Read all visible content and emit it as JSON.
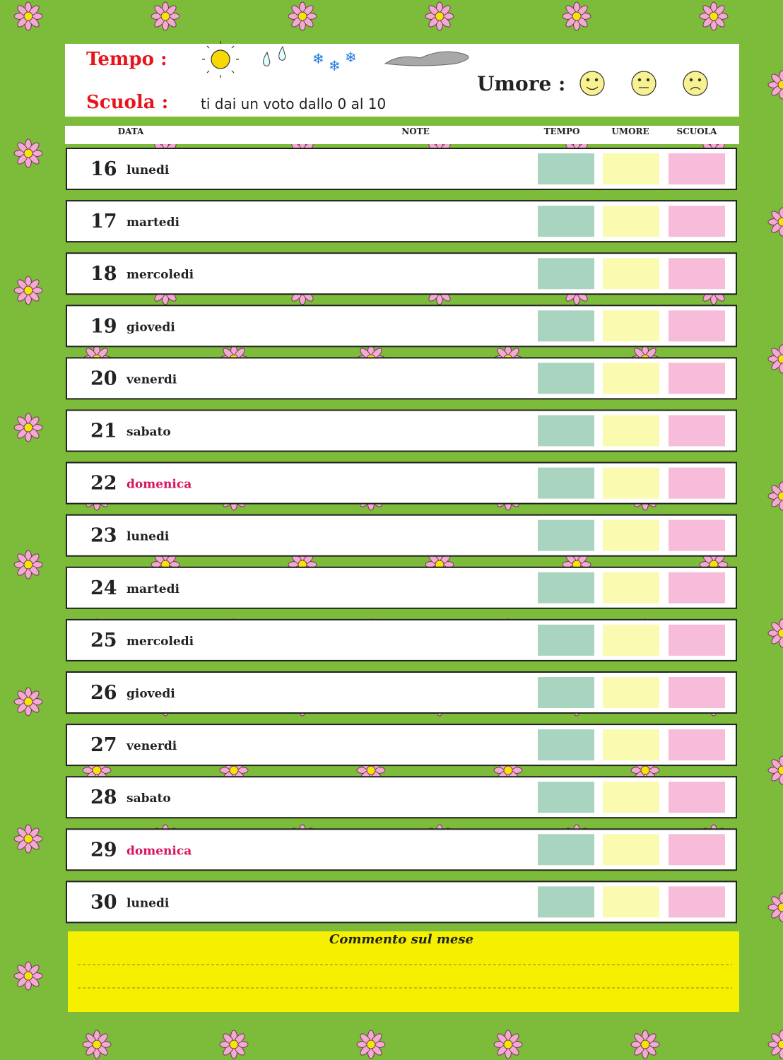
{
  "header": {
    "tempo_label": "Tempo :",
    "scuola_label": "Scuola :",
    "scuola_note": "ti dai un voto dallo 0 al 10",
    "umore_label": "Umore :"
  },
  "columns": [
    "DATA",
    "NOTE",
    "TEMPO",
    "UMORE",
    "SCUOLA"
  ],
  "rows": [
    {
      "day": 16,
      "weekday": "lunedi"
    },
    {
      "day": 17,
      "weekday": "martedi"
    },
    {
      "day": 18,
      "weekday": "mercoledi"
    },
    {
      "day": 19,
      "weekday": "giovedi"
    },
    {
      "day": 20,
      "weekday": "venerdi"
    },
    {
      "day": 21,
      "weekday": "sabato"
    },
    {
      "day": 22,
      "weekday": "domenica"
    },
    {
      "day": 23,
      "weekday": "lunedi"
    },
    {
      "day": 24,
      "weekday": "martedi"
    },
    {
      "day": 25,
      "weekday": "mercoledi"
    },
    {
      "day": 26,
      "weekday": "giovedi"
    },
    {
      "day": 27,
      "weekday": "venerdi"
    },
    {
      "day": 28,
      "weekday": "sabato"
    },
    {
      "day": 29,
      "weekday": "domenica"
    },
    {
      "day": 30,
      "weekday": "lunedi"
    }
  ],
  "footer": {
    "title": "Commento sul mese"
  }
}
